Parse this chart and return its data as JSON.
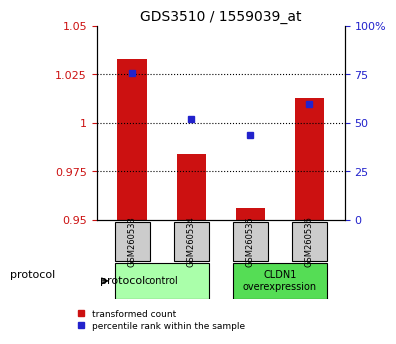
{
  "title": "GDS3510 / 1559039_at",
  "samples": [
    "GSM260533",
    "GSM260534",
    "GSM260535",
    "GSM260536"
  ],
  "bar_values": [
    1.033,
    0.984,
    0.956,
    1.013
  ],
  "bar_baseline": 0.95,
  "dot_values": [
    0.76,
    0.52,
    0.44,
    0.6
  ],
  "ylim_left": [
    0.95,
    1.05
  ],
  "ylim_right": [
    0.0,
    1.0
  ],
  "yticks_left": [
    0.95,
    0.975,
    1.0,
    1.025,
    1.05
  ],
  "ytick_labels_left": [
    "0.95",
    "0.975",
    "1",
    "1.025",
    "1.05"
  ],
  "yticks_right": [
    0.0,
    0.25,
    0.5,
    0.75,
    1.0
  ],
  "ytick_labels_right": [
    "0",
    "25",
    "50",
    "75",
    "100%"
  ],
  "hlines": [
    0.975,
    1.0,
    1.025
  ],
  "bar_color": "#cc1111",
  "dot_color": "#2222cc",
  "groups": [
    {
      "label": "control",
      "indices": [
        0,
        1
      ],
      "color": "#aaffaa"
    },
    {
      "label": "CLDN1\noverexpression",
      "indices": [
        2,
        3
      ],
      "color": "#55dd55"
    }
  ],
  "group_header": "protocol",
  "legend_bar_label": "transformed count",
  "legend_dot_label": "percentile rank within the sample",
  "bar_width": 0.5,
  "tick_label_color_left": "#cc1111",
  "tick_label_color_right": "#2222cc"
}
